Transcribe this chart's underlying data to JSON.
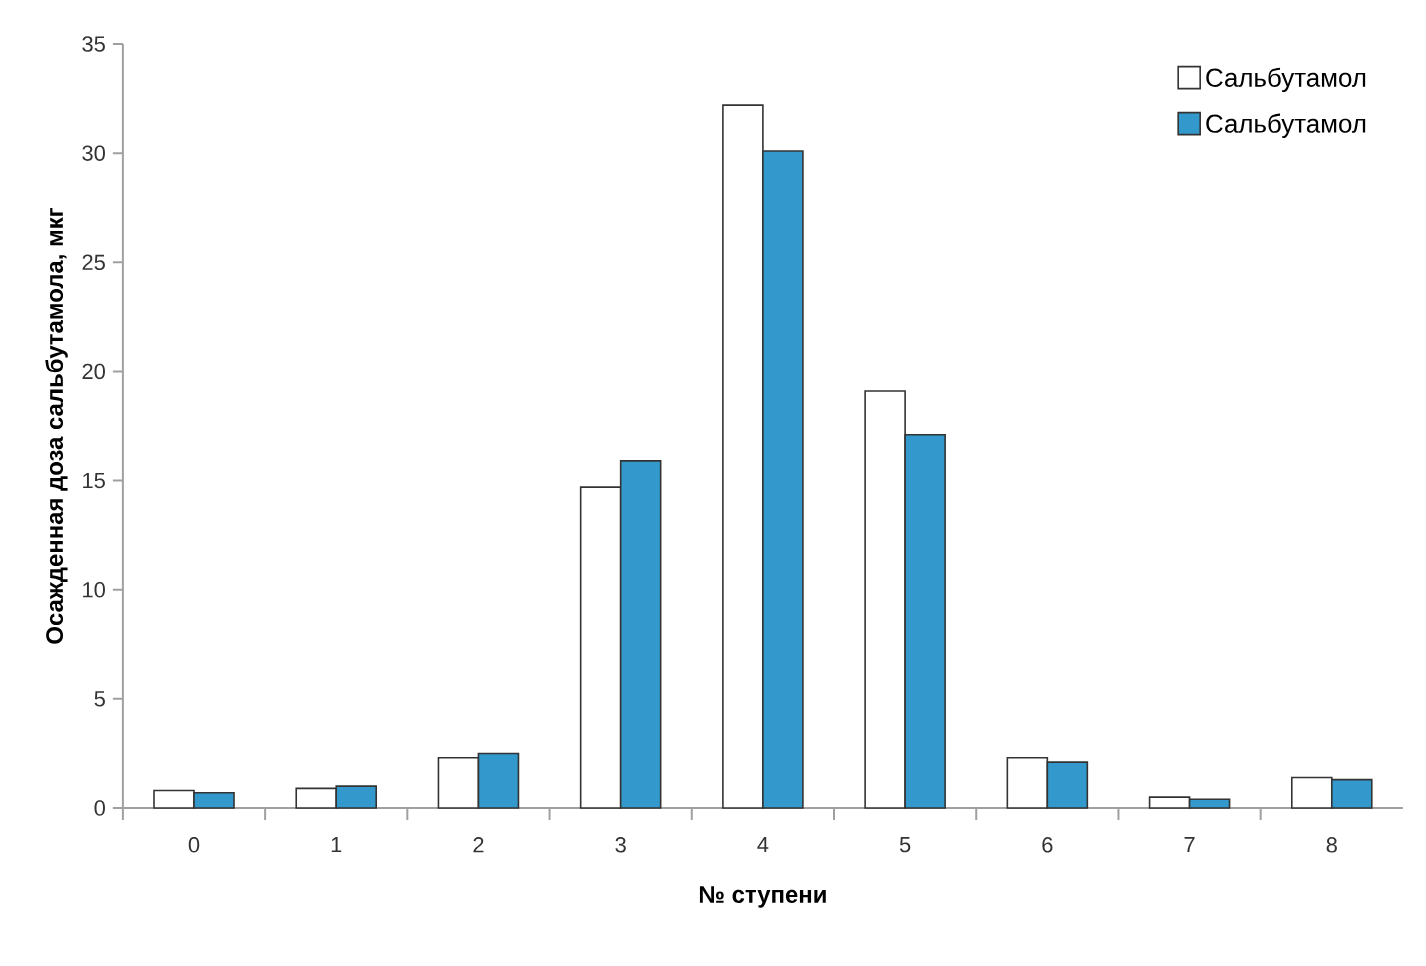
{
  "chart_data": {
    "type": "bar",
    "xlabel": "№ ступени",
    "ylabel": "Осажденная доза сальбутамола, мкг",
    "categories": [
      "0",
      "1",
      "2",
      "3",
      "4",
      "5",
      "6",
      "7",
      "8"
    ],
    "series": [
      {
        "name": "Сальбутамол",
        "color": "#ffffff",
        "values": [
          0.8,
          0.9,
          2.3,
          14.7,
          32.2,
          19.1,
          2.3,
          0.5,
          1.4
        ]
      },
      {
        "name": "Сальбутамол",
        "color": "#3399cc",
        "values": [
          0.7,
          1.0,
          2.5,
          15.9,
          30.1,
          17.1,
          2.1,
          0.4,
          1.3
        ]
      }
    ],
    "ylim": [
      0,
      35
    ],
    "yticks": [
      0,
      5,
      10,
      15,
      20,
      25,
      30,
      35
    ],
    "grid": false,
    "legend": "top right"
  }
}
